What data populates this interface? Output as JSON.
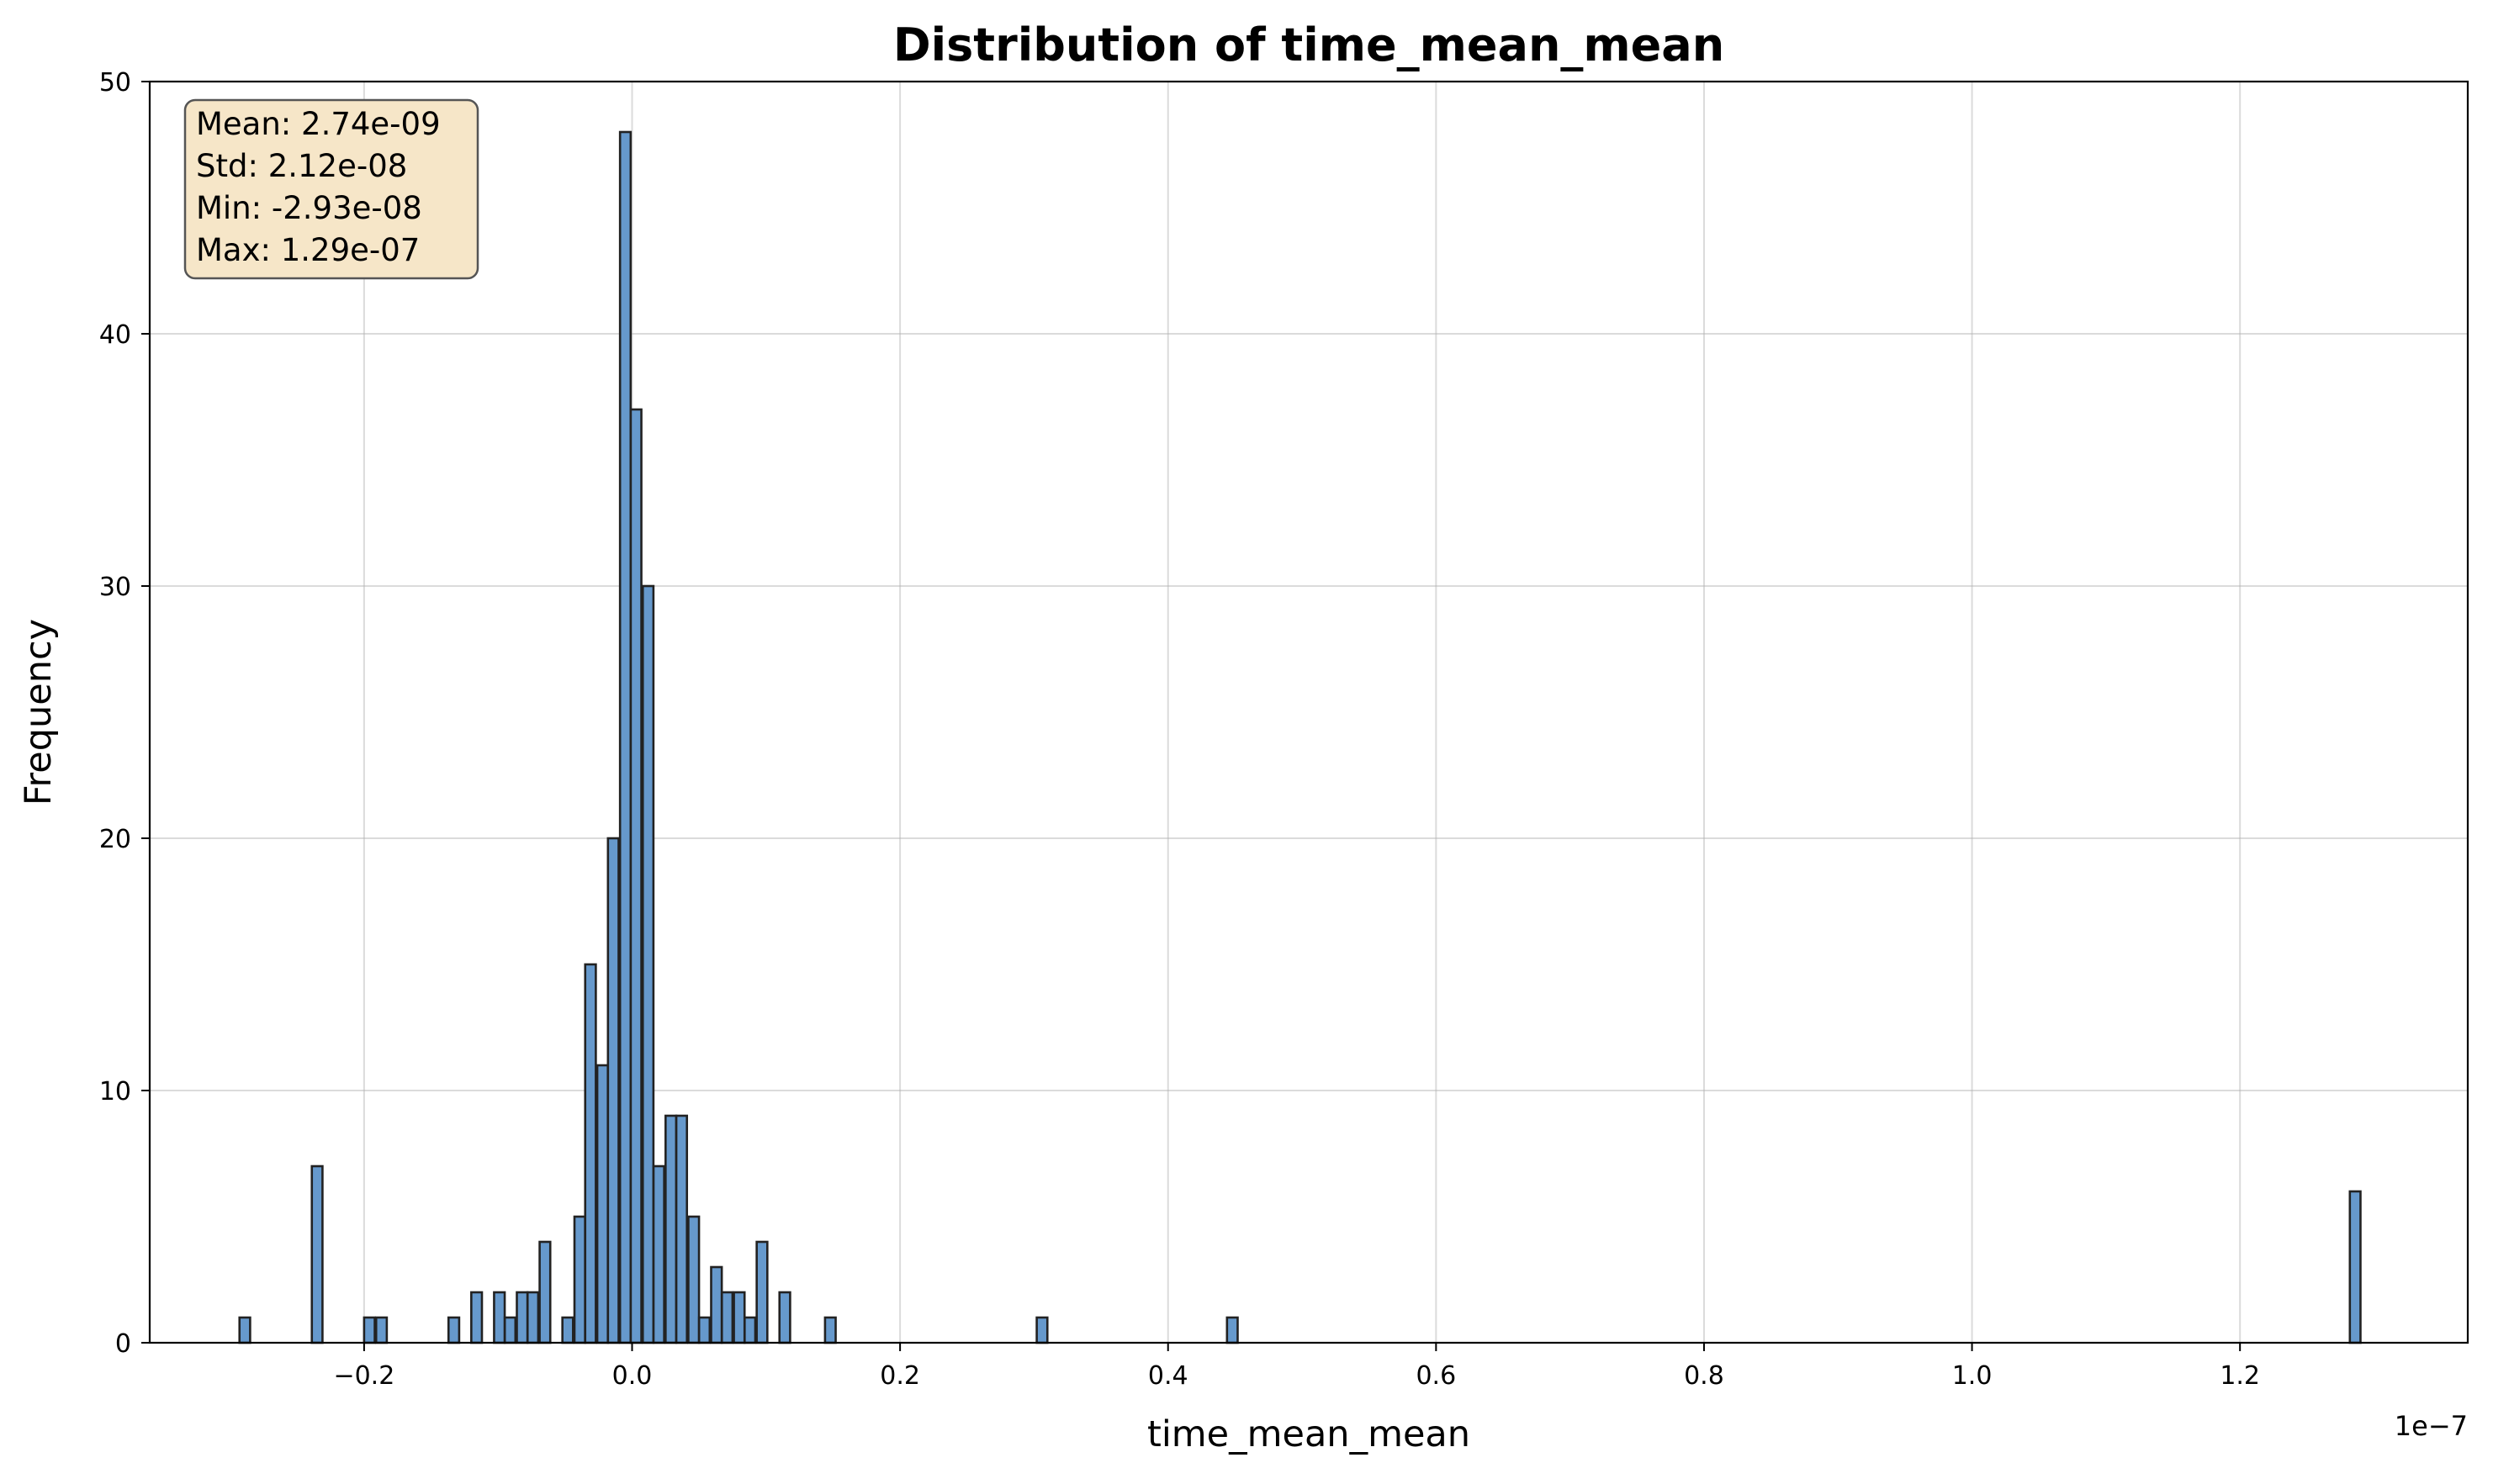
{
  "chart_data": {
    "type": "bar",
    "title": "Distribution of time_mean_mean",
    "xlabel": "time_mean_mean",
    "ylabel": "Frequency",
    "x_offset_label": "1e−7",
    "x_scale": 1e-07,
    "xlim": [
      -0.36,
      1.37
    ],
    "ylim": [
      0,
      50
    ],
    "x_ticks": [
      -0.2,
      0.0,
      0.2,
      0.4,
      0.6,
      0.8,
      1.0,
      1.2
    ],
    "x_tick_labels": [
      "−0.2",
      "0.0",
      "0.2",
      "0.4",
      "0.6",
      "0.8",
      "1.0",
      "1.2"
    ],
    "y_ticks": [
      0,
      10,
      20,
      30,
      40,
      50
    ],
    "y_tick_labels": [
      "0",
      "10",
      "20",
      "30",
      "40",
      "50"
    ],
    "grid": true,
    "bin_width": 0.00794,
    "bar_color": "#6699cc",
    "edge_color": "#222222",
    "bins": [
      {
        "x": -0.293,
        "count": 1
      },
      {
        "x": -0.239,
        "count": 7
      },
      {
        "x": -0.2,
        "count": 1
      },
      {
        "x": -0.191,
        "count": 1
      },
      {
        "x": -0.137,
        "count": 1
      },
      {
        "x": -0.12,
        "count": 2
      },
      {
        "x": -0.103,
        "count": 2
      },
      {
        "x": -0.095,
        "count": 1
      },
      {
        "x": -0.086,
        "count": 2
      },
      {
        "x": -0.078,
        "count": 2
      },
      {
        "x": -0.069,
        "count": 4
      },
      {
        "x": -0.052,
        "count": 1
      },
      {
        "x": -0.043,
        "count": 5
      },
      {
        "x": -0.035,
        "count": 15
      },
      {
        "x": -0.026,
        "count": 11
      },
      {
        "x": -0.018,
        "count": 20
      },
      {
        "x": -0.009,
        "count": 48
      },
      {
        "x": -0.001,
        "count": 37
      },
      {
        "x": 0.008,
        "count": 30
      },
      {
        "x": 0.016,
        "count": 7
      },
      {
        "x": 0.025,
        "count": 9
      },
      {
        "x": 0.033,
        "count": 9
      },
      {
        "x": 0.042,
        "count": 5
      },
      {
        "x": 0.05,
        "count": 1
      },
      {
        "x": 0.059,
        "count": 3
      },
      {
        "x": 0.067,
        "count": 2
      },
      {
        "x": 0.076,
        "count": 2
      },
      {
        "x": 0.084,
        "count": 1
      },
      {
        "x": 0.093,
        "count": 4
      },
      {
        "x": 0.11,
        "count": 2
      },
      {
        "x": 0.144,
        "count": 1
      },
      {
        "x": 0.302,
        "count": 1
      },
      {
        "x": 0.444,
        "count": 1
      },
      {
        "x": 1.282,
        "count": 6
      }
    ],
    "stats_box": {
      "lines": [
        "Mean: 2.74e-09",
        "Std: 2.12e-08",
        "Min: -2.93e-08",
        "Max: 1.29e-07"
      ],
      "background": "#f6e6c8",
      "border": "#555555"
    }
  }
}
